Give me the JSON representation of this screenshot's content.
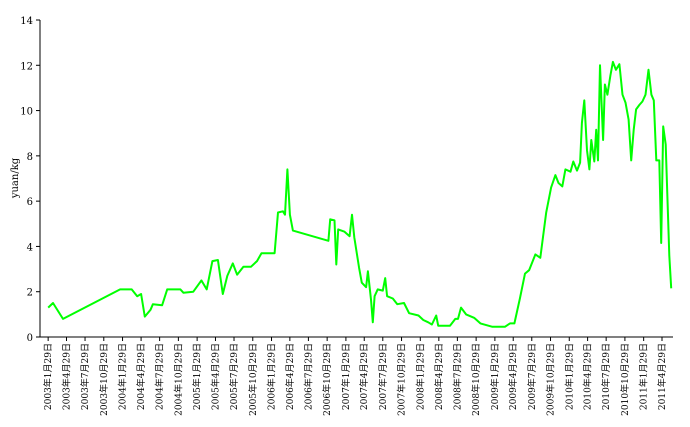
{
  "chart_data": {
    "type": "line",
    "ylabel": "yuan/kg",
    "ylim": [
      0,
      14
    ],
    "yticks": [
      0,
      2,
      4,
      6,
      8,
      10,
      12,
      14
    ],
    "xlim": [
      "2002年12月20日",
      "2011年6月22日"
    ],
    "xticks": [
      "2003年1月29日",
      "2003年4月29日",
      "2003年7月29日",
      "2003年10月29日",
      "2004年1月29日",
      "2004年4月29日",
      "2004年7月29日",
      "2004年10月29日",
      "2005年1月29日",
      "2005年4月29日",
      "2005年7月29日",
      "2005年10月29日",
      "2006年1月29日",
      "2006年4月29日",
      "2006年7月29日",
      "2006年10月29日",
      "2007年1月29日",
      "2007年4月29日",
      "2007年7月29日",
      "2007年10月29日",
      "2008年1月29日",
      "2008年4月29日",
      "2008年7月29日",
      "2008年10月29日",
      "2009年1月29日",
      "2009年4月29日",
      "2009年7月29日",
      "2009年10月29日",
      "2010年1月29日",
      "2010年4月29日",
      "2010年7月29日",
      "2010年10月29日",
      "2011年1月29日",
      "2011年4月29日"
    ],
    "series": [
      {
        "color": "#00ff00",
        "x": [
          "2003年1月29日",
          "2003年2月22日",
          "2003年3月8日",
          "2003年4月12日",
          "2004年1月17日",
          "2004年3月14日",
          "2004年4月10日",
          "2004年4月29日",
          "2004年5月17日",
          "2004年6月14日",
          "2004年6月26日",
          "2004年8月10日",
          "2004年9月4日",
          "2004年11月8日",
          "2004年11月23日",
          "2005年1月10日",
          "2005年2月19日",
          "2005年3月17日",
          "2005年4月14日",
          "2005年5月11日",
          "2005年6月4日",
          "2005年6月26日",
          "2005年7月23日",
          "2005年8月13日",
          "2005年9月13日",
          "2005年10月20日",
          "2005年11月19日",
          "2005年12月11日",
          "2006年2月13日",
          "2006年3月2日",
          "2006年3月26日",
          "2006年4月5日",
          "2006年4月17日",
          "2006年4月29日",
          "2006年5月14日",
          "2006年11月4日",
          "2006年11月13日",
          "2006年12月4日",
          "2006年12月13日",
          "2006年12月22日",
          "2007年1月22日",
          "2007年2月16日",
          "2007年2月28日",
          "2007年3月11日",
          "2007年4月4日",
          "2007年4月17日",
          "2007年5月8日",
          "2007年5月17日",
          "2007年6月1日",
          "2007年6月10日",
          "2007年6月19日",
          "2007年7月4日",
          "2007年7月29日",
          "2007年8月10日",
          "2007年8月19日",
          "2007年9月16日",
          "2007年10月8日",
          "2007年11月10日",
          "2007年12月5日",
          "2008年1月20日",
          "2008年2月13日",
          "2008年3月8日",
          "2008年3月26日",
          "2008年4月16日",
          "2008年4月26日",
          "2008年6月23日",
          "2008年7月19日",
          "2008年8月1日",
          "2008年8月16日",
          "2008年9月10日",
          "2008年10月19日",
          "2008年11月19日",
          "2009年1月17日",
          "2009年3月19日",
          "2009年4月13日",
          "2009年5月5日",
          "2009年6月1日",
          "2009年6月26日",
          "2009年7月16日",
          "2009年8月16日",
          "2009年9月9日",
          "2009年10月8日",
          "2009年11月1日",
          "2009年11月22日",
          "2009年12月7日",
          "2009年12月26日",
          "2010年1月10日",
          "2010年2月4日",
          "2010年2月18日",
          "2010年3月8日",
          "2010年3月23日",
          "2010年4月1日",
          "2010年4月13日",
          "2010年4月26日",
          "2010年5月8日",
          "2010年5月17日",
          "2010年6月1日",
          "2010年6月10日",
          "2010年6月19日",
          "2010年6月29日",
          "2010年7月14日",
          "2010年7月23日",
          "2010年8月4日",
          "2010年8月19日",
          "2010年8月31日",
          "2010年9月15日",
          "2010年10月2日",
          "2010年10月17日",
          "2010年11月1日",
          "2010年11月16日",
          "2010年11月29日",
          "2010年12月11日",
          "2010年12月23日",
          "2011年1月8日",
          "2011年1月23日",
          "2011年2月7日",
          "2011年2月22日",
          "2011年3月8日",
          "2011年3月20日",
          "2011年4月1日",
          "2011年4月16日",
          "2011年4月25日",
          "2011年5月5日",
          "2011年5月17日",
          "2011年5月26日",
          "2011年6月4日",
          "2011年6月13日"
        ],
        "values": [
          1.3,
          1.5,
          1.3,
          0.8,
          2.1,
          2.1,
          1.8,
          1.9,
          0.9,
          1.2,
          1.45,
          1.4,
          2.1,
          2.1,
          1.95,
          2.0,
          2.5,
          2.1,
          3.35,
          3.4,
          1.9,
          2.7,
          3.25,
          2.75,
          3.1,
          3.1,
          3.35,
          3.7,
          3.7,
          5.5,
          5.55,
          5.4,
          7.4,
          5.4,
          4.7,
          4.25,
          5.2,
          5.15,
          3.2,
          4.75,
          4.65,
          4.45,
          5.4,
          4.4,
          3.05,
          2.4,
          2.2,
          2.9,
          1.65,
          0.65,
          1.8,
          2.1,
          2.05,
          2.6,
          1.8,
          1.7,
          1.45,
          1.5,
          1.05,
          0.95,
          0.75,
          0.65,
          0.55,
          0.95,
          0.5,
          0.5,
          0.8,
          0.8,
          1.3,
          1.0,
          0.85,
          0.6,
          0.45,
          0.45,
          0.6,
          0.6,
          1.7,
          2.8,
          2.95,
          3.65,
          3.5,
          5.5,
          6.6,
          7.15,
          6.8,
          6.65,
          7.4,
          7.3,
          7.75,
          7.35,
          7.7,
          9.45,
          10.45,
          8.25,
          7.4,
          8.7,
          7.75,
          9.15,
          7.8,
          12.0,
          8.7,
          11.15,
          10.7,
          11.55,
          12.15,
          11.8,
          12.05,
          10.7,
          10.35,
          9.6,
          7.8,
          9.15,
          10.05,
          10.25,
          10.4,
          10.7,
          11.8,
          10.7,
          10.45,
          7.8,
          7.8,
          4.15,
          9.3,
          8.5,
          6.05,
          3.6,
          2.15
        ]
      }
    ]
  }
}
